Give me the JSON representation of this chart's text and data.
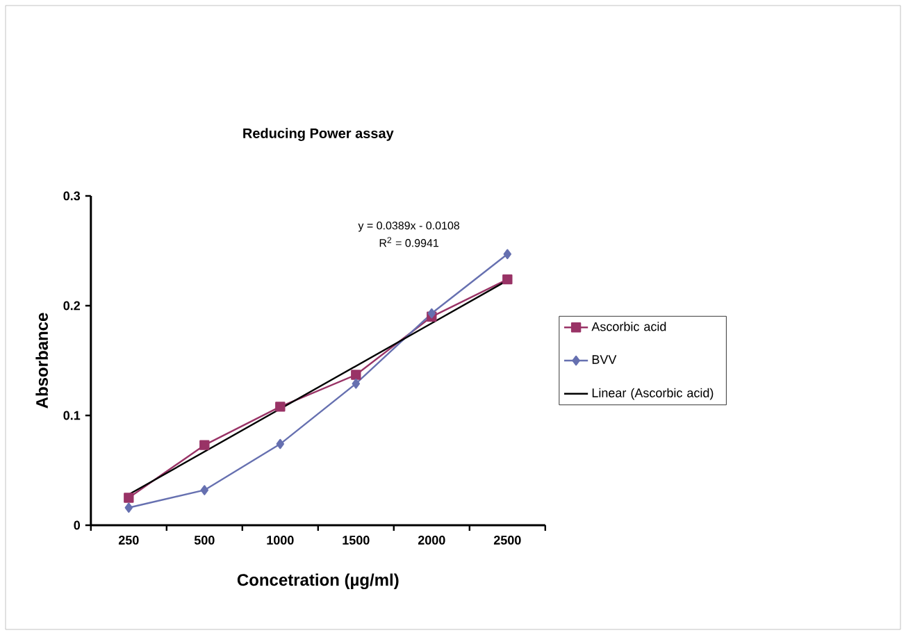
{
  "chart_data": {
    "type": "line",
    "title": "Reducing Power assay",
    "xlabel": "Concetration (µg/ml)",
    "ylabel": "Absorbance",
    "categories": [
      "250",
      "500",
      "1000",
      "1500",
      "2000",
      "2500"
    ],
    "series": [
      {
        "name": "Ascorbic acid",
        "color": "#993366",
        "marker": "square",
        "values": [
          0.025,
          0.073,
          0.108,
          0.137,
          0.19,
          0.224
        ]
      },
      {
        "name": "BVV",
        "color": "#6670b0",
        "marker": "diamond",
        "values": [
          0.016,
          0.032,
          0.074,
          0.129,
          0.193,
          0.247
        ]
      },
      {
        "name": "Linear (Ascorbic acid)",
        "color": "#000000",
        "marker": "none",
        "values": [
          0.028,
          0.067,
          0.106,
          0.145,
          0.184,
          0.223
        ]
      }
    ],
    "annotations": [
      "y = 0.0389x - 0.0108",
      "R$^{2}$ = 0.9941"
    ],
    "ylim": [
      0,
      0.3
    ],
    "yticks": [
      0,
      0.1,
      0.2,
      0.3
    ],
    "grid": false,
    "legend": "right"
  }
}
